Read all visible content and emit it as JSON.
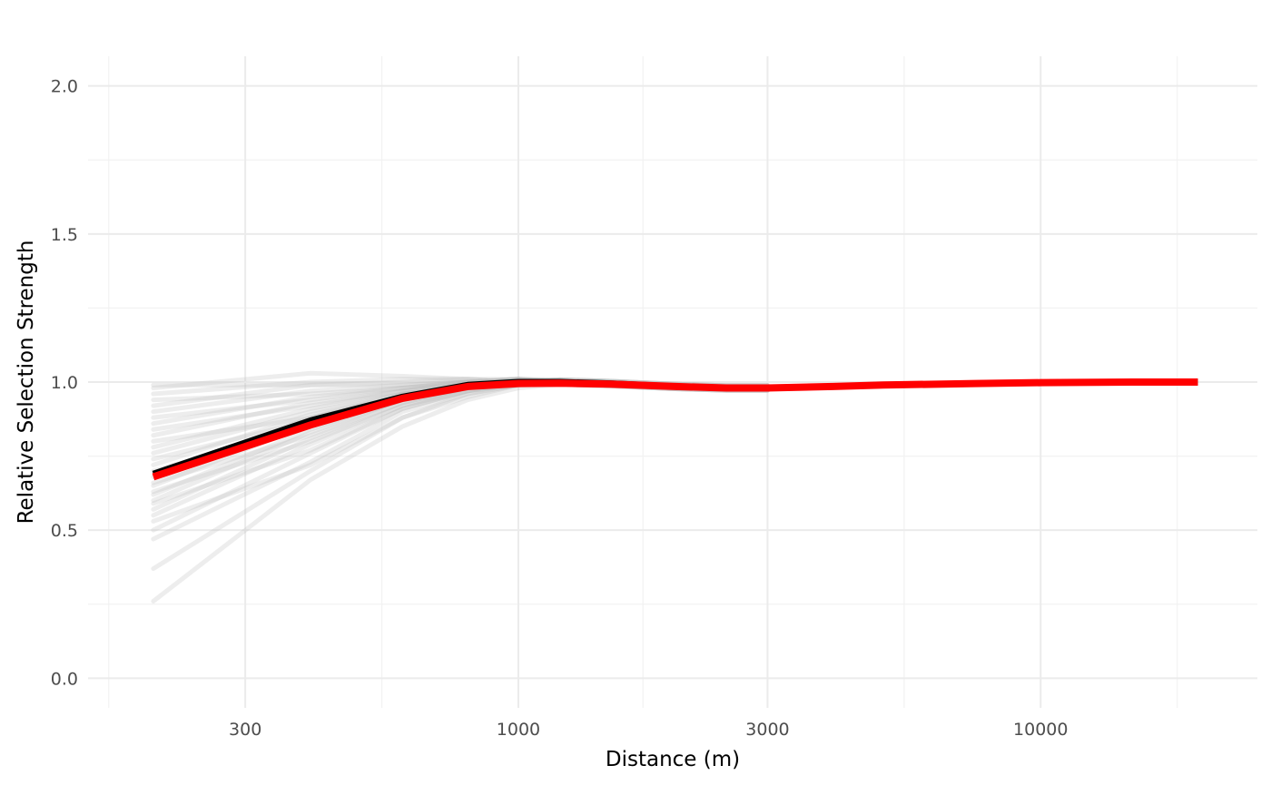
{
  "chart_data": {
    "type": "line",
    "title": "",
    "xlabel": "Distance (m)",
    "ylabel": "Relative Selection Strength",
    "x_scale": "log10",
    "xlim": [
      150,
      26000
    ],
    "ylim": [
      -0.1,
      2.1
    ],
    "x_ticks": [
      300,
      1000,
      3000,
      10000
    ],
    "x_tick_labels": [
      "300",
      "1000",
      "3000",
      "10000"
    ],
    "y_ticks": [
      0,
      0.5,
      1,
      1.5,
      2
    ],
    "y_tick_labels": [
      "0.0",
      "0.5",
      "1.0",
      "1.5",
      "2.0"
    ],
    "grid": true,
    "legend": "none",
    "x": [
      200,
      400,
      600,
      800,
      1000,
      1200,
      1500,
      2000,
      2500,
      3000,
      4000,
      5000,
      7500,
      10000,
      15000,
      20000
    ],
    "series": [
      {
        "role": "mean",
        "color": "#000000",
        "values": [
          0.69,
          0.87,
          0.95,
          0.99,
          1.0,
          1.0,
          0.995,
          0.985,
          0.98,
          0.98,
          0.985,
          0.99,
          0.995,
          0.998,
          1.0,
          1.0
        ]
      },
      {
        "role": "fit",
        "color": "#ff0000",
        "values": [
          0.68,
          0.855,
          0.945,
          0.985,
          0.995,
          0.996,
          0.993,
          0.985,
          0.98,
          0.98,
          0.985,
          0.99,
          0.995,
          0.998,
          1.0,
          1.0
        ]
      }
    ],
    "bootstrap_color": "#bdbdbd",
    "bootstrap": [
      [
        0.26,
        0.67,
        0.85,
        0.94,
        0.98
      ],
      [
        0.37,
        0.7,
        0.88,
        0.95,
        0.99
      ],
      [
        0.47,
        0.73,
        0.9,
        0.96,
        0.99
      ],
      [
        0.5,
        0.76,
        0.91,
        0.97,
        1.0
      ],
      [
        0.53,
        0.72,
        0.88,
        0.96,
        0.99
      ],
      [
        0.55,
        0.79,
        0.92,
        0.97,
        1.0
      ],
      [
        0.57,
        0.81,
        0.93,
        0.98,
        1.0
      ],
      [
        0.59,
        0.77,
        0.91,
        0.97,
        0.99
      ],
      [
        0.6,
        0.83,
        0.94,
        0.98,
        1.0
      ],
      [
        0.62,
        0.84,
        0.94,
        0.98,
        1.0
      ],
      [
        0.63,
        0.8,
        0.92,
        0.97,
        0.99
      ],
      [
        0.65,
        0.86,
        0.95,
        0.99,
        1.0
      ],
      [
        0.66,
        0.82,
        0.93,
        0.98,
        1.0
      ],
      [
        0.68,
        0.88,
        0.96,
        0.99,
        1.01
      ],
      [
        0.7,
        0.85,
        0.94,
        0.98,
        1.0
      ],
      [
        0.72,
        0.89,
        0.96,
        0.99,
        1.0
      ],
      [
        0.74,
        0.87,
        0.95,
        0.99,
        1.01
      ],
      [
        0.76,
        0.9,
        0.96,
        0.99,
        1.0
      ],
      [
        0.78,
        0.91,
        0.97,
        1.0,
        1.01
      ],
      [
        0.8,
        0.88,
        0.95,
        0.99,
        1.0
      ],
      [
        0.82,
        0.93,
        0.97,
        1.0,
        1.01
      ],
      [
        0.84,
        0.92,
        0.97,
        0.99,
        1.0
      ],
      [
        0.86,
        0.95,
        0.98,
        1.0,
        1.01
      ],
      [
        0.88,
        0.94,
        0.98,
        1.0,
        1.01
      ],
      [
        0.9,
        0.97,
        0.99,
        1.0,
        1.01
      ],
      [
        0.92,
        0.99,
        1.0,
        1.01,
        1.01
      ],
      [
        0.94,
        0.96,
        0.98,
        1.0,
        1.0
      ],
      [
        0.96,
        1.0,
        1.01,
        1.01,
        1.0
      ],
      [
        0.98,
        1.03,
        1.02,
        1.01,
        1.0
      ],
      [
        0.99,
        0.99,
        0.99,
        1.0,
        1.0
      ]
    ]
  }
}
